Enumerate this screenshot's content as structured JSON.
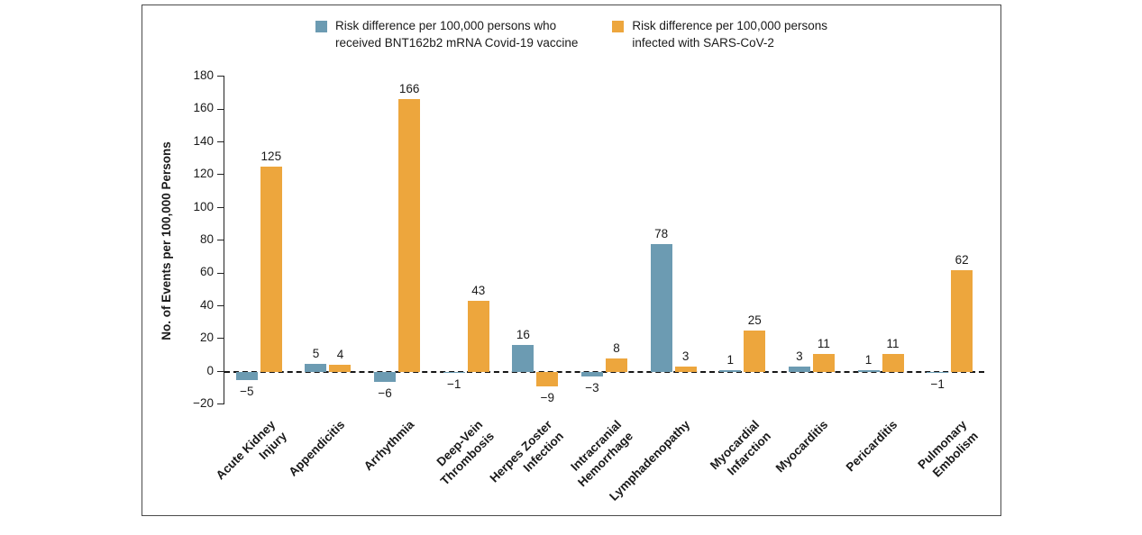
{
  "figure": {
    "background": "#ffffff",
    "border_color": "#4a4a4a"
  },
  "chart_data": {
    "type": "bar",
    "title": "",
    "xlabel": "",
    "ylabel": "No. of Events per 100,000 Persons",
    "ylim": [
      -20,
      180
    ],
    "ytick_step": 20,
    "grid": false,
    "legend_position": "top-center",
    "zero_line_style": "dashed",
    "categories": [
      "Acute Kidney\nInjury",
      "Appendicitis",
      "Arrhythmia",
      "Deep-Vein\nThrombosis",
      "Herpes Zoster\nInfection",
      "Intracranial\nHemorrhage",
      "Lymphadenopathy",
      "Myocardial\nInfarction",
      "Myocarditis",
      "Pericarditis",
      "Pulmonary\nEmbolism"
    ],
    "series": [
      {
        "name": "Risk difference per 100,000 persons who received BNT162b2 mRNA Covid-19 vaccine",
        "legend_lines": [
          "Risk difference per 100,000 persons who",
          "received BNT162b2 mRNA Covid-19 vaccine"
        ],
        "color": "#6C9BB2",
        "values": [
          -5,
          5,
          -6,
          -1,
          16,
          -3,
          78,
          1,
          3,
          1,
          -1
        ]
      },
      {
        "name": "Risk difference per 100,000 persons infected with SARS-CoV-2",
        "legend_lines": [
          "Risk difference per 100,000 persons",
          "infected with SARS-CoV-2"
        ],
        "color": "#EDA63D",
        "values": [
          125,
          4,
          166,
          43,
          -9,
          8,
          3,
          25,
          11,
          11,
          62
        ]
      }
    ]
  }
}
